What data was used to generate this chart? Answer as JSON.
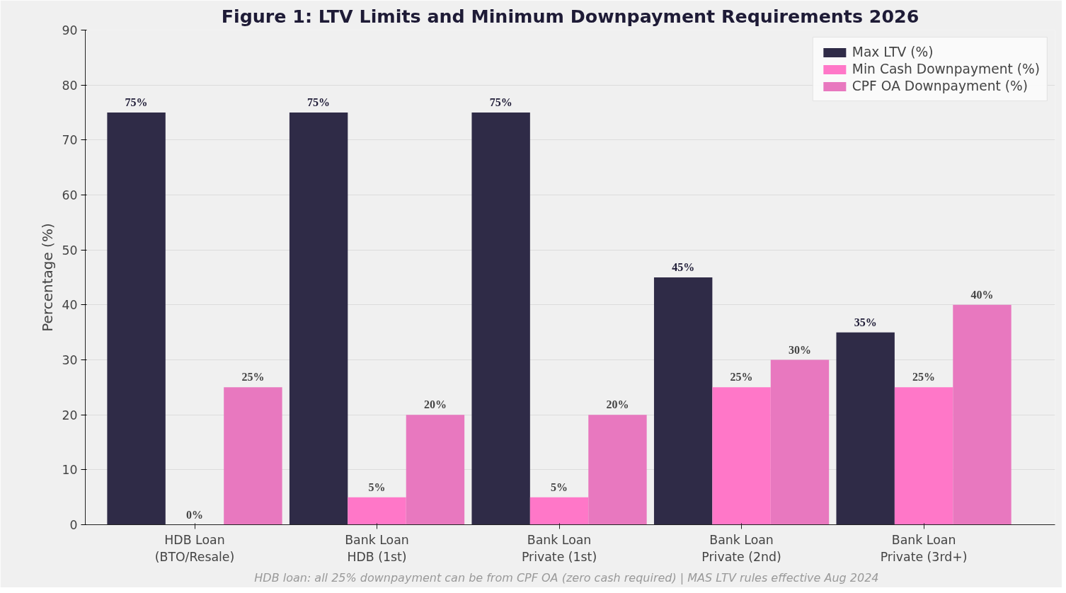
{
  "chart_data": {
    "type": "bar",
    "title": "Figure 1: LTV Limits and Minimum Downpayment Requirements 2026",
    "ylabel": "Percentage (%)",
    "categories": [
      "HDB Loan\n(BTO/Resale)",
      "Bank Loan\nHDB (1st)",
      "Bank Loan\nPrivate (1st)",
      "Bank Loan\nPrivate (2nd)",
      "Bank Loan\nPrivate (3rd+)"
    ],
    "series": [
      {
        "name": "Max LTV (%)",
        "color": "#2f2b47",
        "values": [
          75,
          75,
          75,
          45,
          35
        ],
        "value_labels": [
          "75%",
          "75%",
          "75%",
          "45%",
          "35%"
        ]
      },
      {
        "name": "Min Cash Downpayment (%)",
        "color": "#ff77c8",
        "values": [
          0,
          5,
          5,
          25,
          25
        ],
        "value_labels": [
          "0%",
          "5%",
          "5%",
          "25%",
          "25%"
        ]
      },
      {
        "name": "CPF OA Downpayment (%)",
        "color": "#e878bf",
        "values": [
          25,
          20,
          20,
          30,
          40
        ],
        "value_labels": [
          "25%",
          "20%",
          "20%",
          "30%",
          "40%"
        ]
      }
    ],
    "ylim": [
      0,
      90
    ],
    "yticks": [
      0,
      10,
      20,
      30,
      40,
      50,
      60,
      70,
      80,
      90
    ],
    "grid": "y",
    "legend": "top right",
    "annotations": [
      "HDB loan: all 25% downpayment can be from CPF OA (zero cash required)  |  MAS LTV rules effective Aug 2024"
    ]
  }
}
